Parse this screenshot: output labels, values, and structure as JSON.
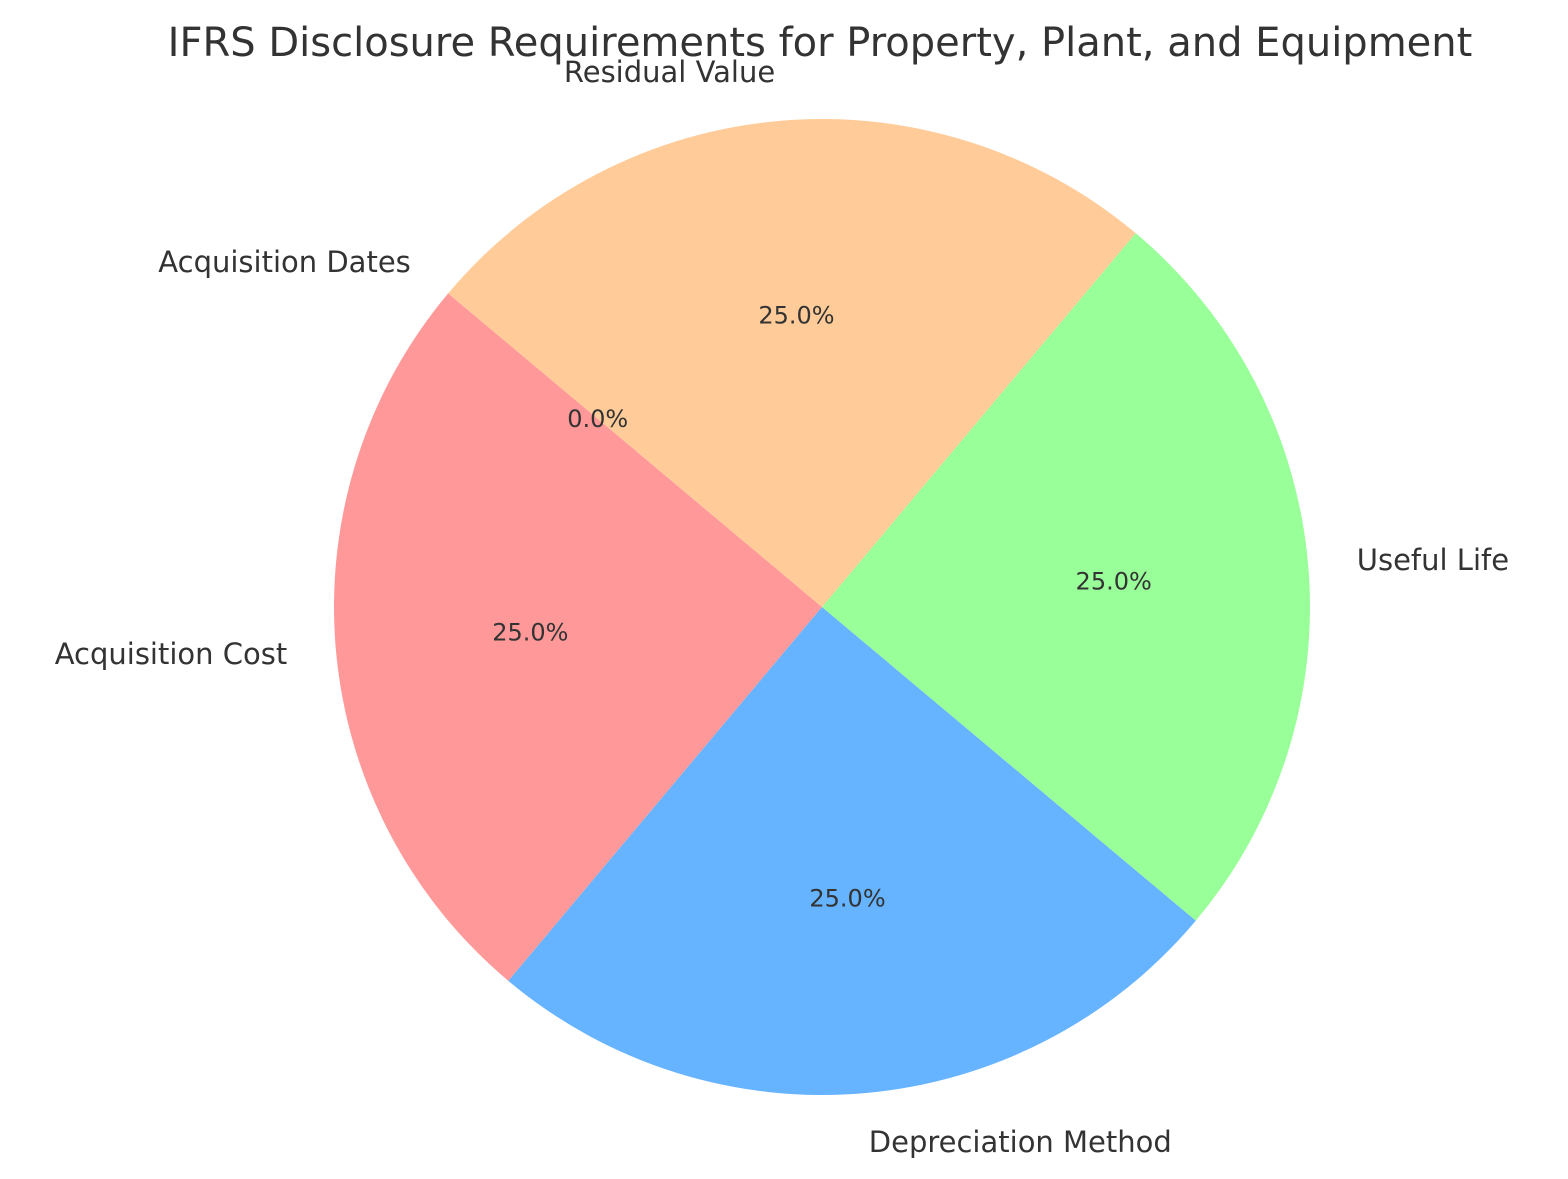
{
  "chart_data": {
    "type": "pie",
    "title": "IFRS Disclosure Requirements for Property, Plant, and Equipment",
    "start_angle_deg": 140,
    "direction": "counterclockwise",
    "legend": "none",
    "slices": [
      {
        "label": "Acquisition Cost",
        "value": 25,
        "percent_label": "25.0%",
        "color": "#ff9999"
      },
      {
        "label": "Depreciation Method",
        "value": 25,
        "percent_label": "25.0%",
        "color": "#66b3ff"
      },
      {
        "label": "Useful Life",
        "value": 25,
        "percent_label": "25.0%",
        "color": "#99ff99"
      },
      {
        "label": "Residual Value",
        "value": 25,
        "percent_label": "25.0%",
        "color": "#ffcc99"
      },
      {
        "label": "Acquisition Dates",
        "value": 0,
        "percent_label": "0.0%",
        "color": "#c2c2f0"
      }
    ]
  }
}
